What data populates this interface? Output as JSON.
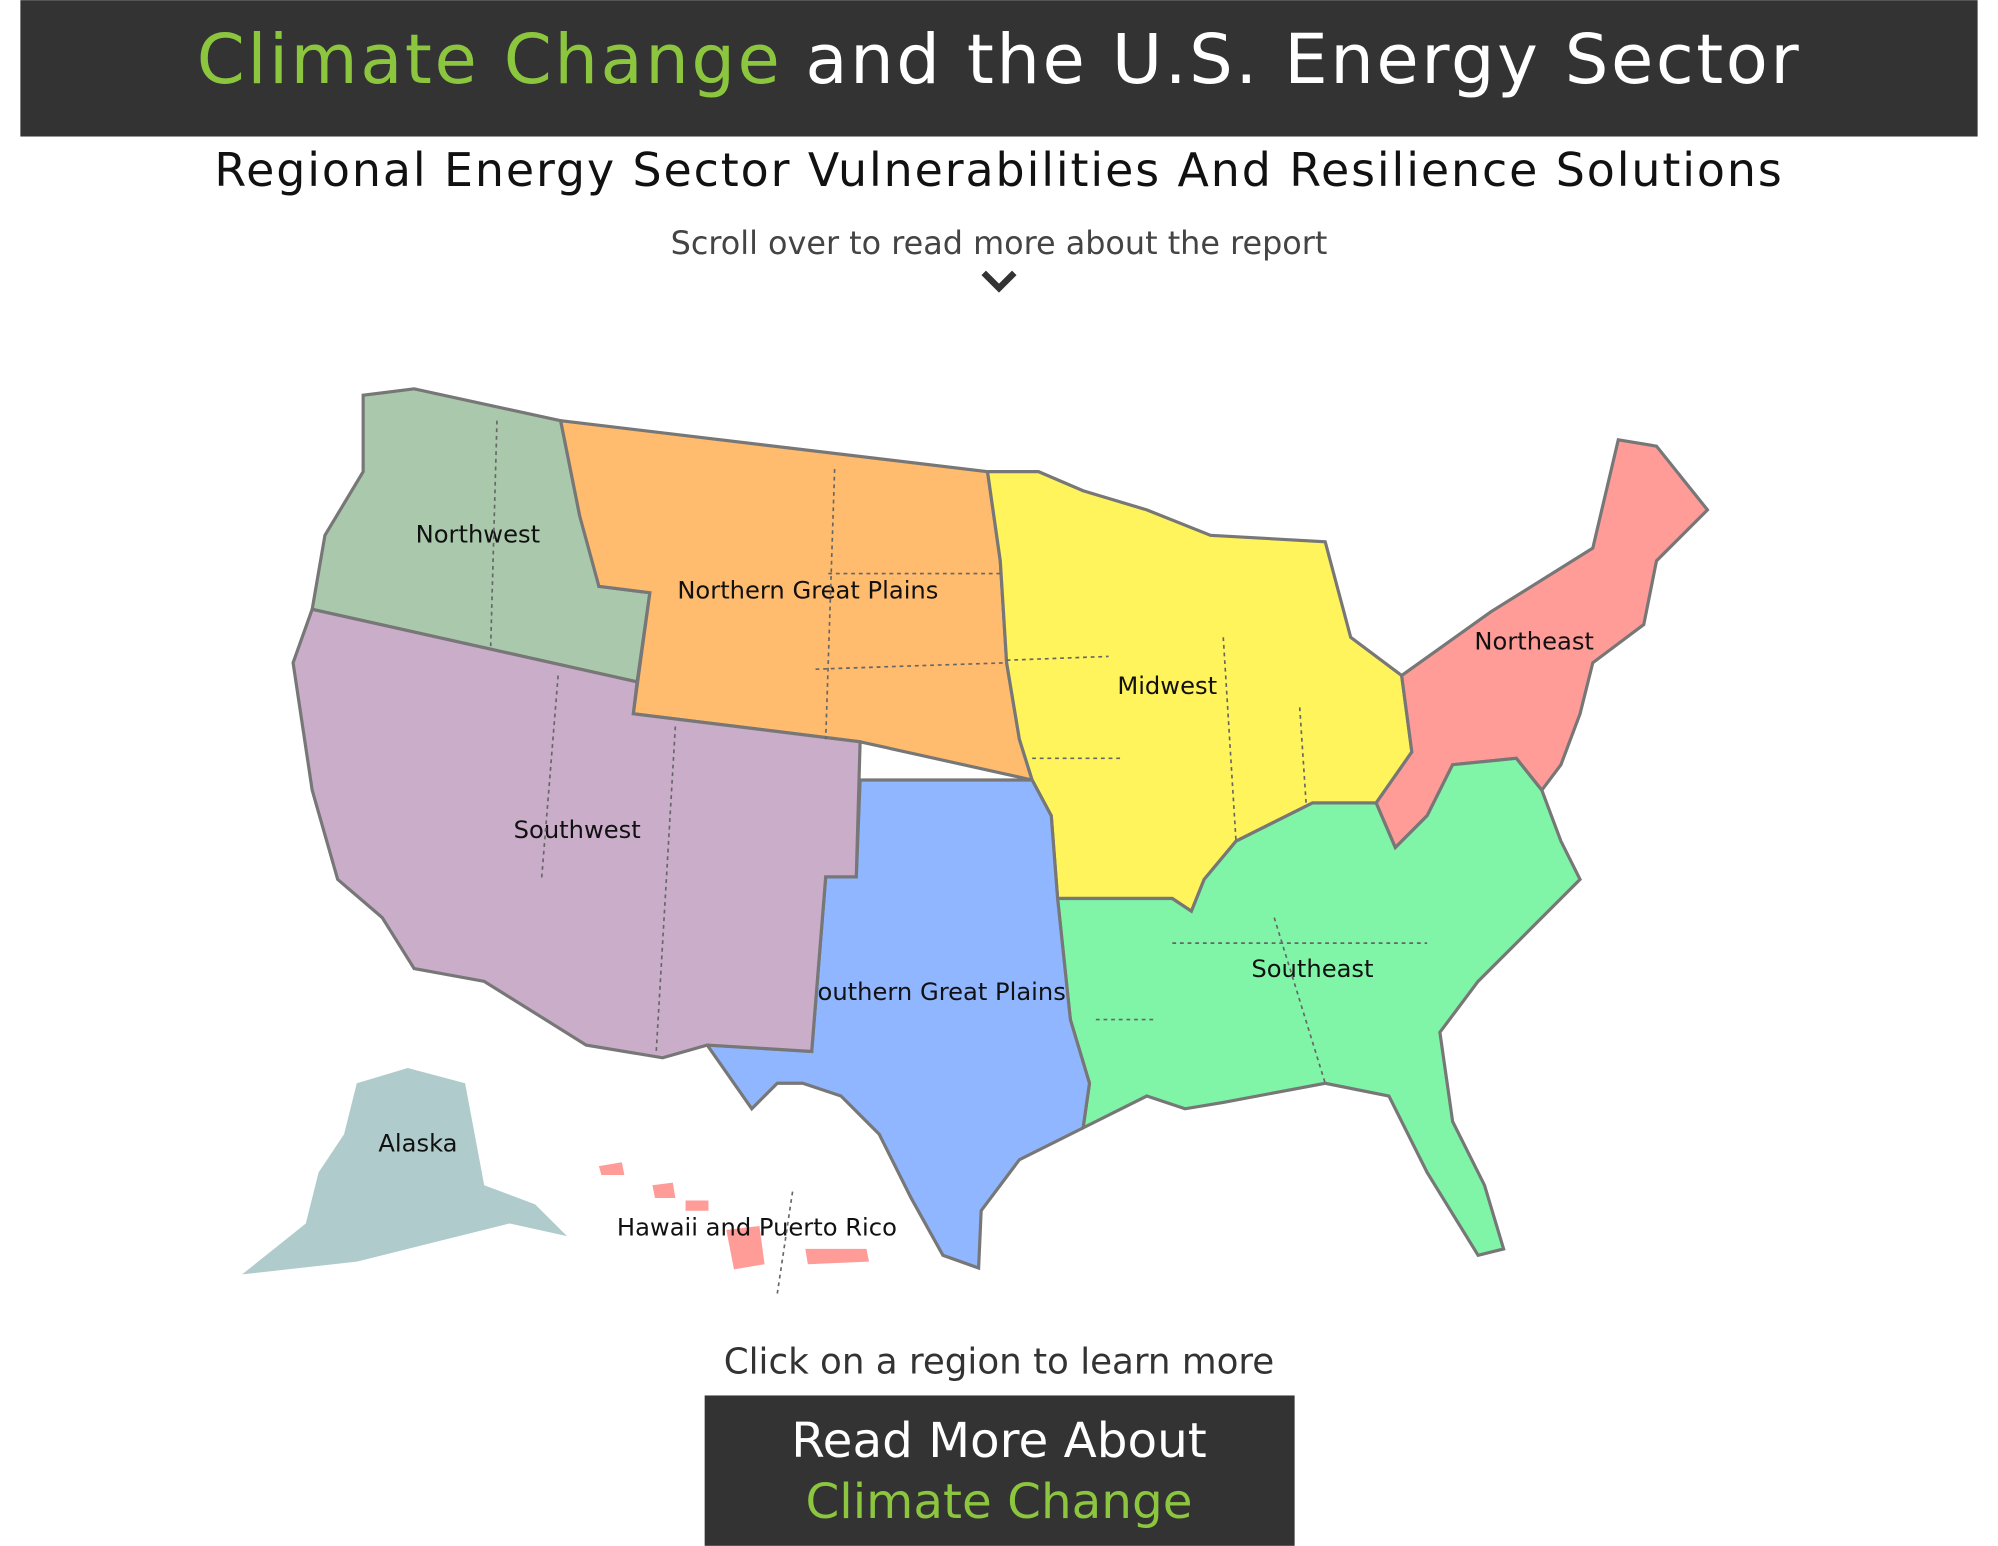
{
  "header": {
    "title_highlight": "Climate Change",
    "title_rest": "and the U.S. Energy Sector"
  },
  "subtitle": "Regional Energy Sector Vulnerabilities And Resilience Solutions",
  "scroll_hint": "Scroll over to read more about the report",
  "regions": [
    {
      "name": "Northwest",
      "color": "#aac8ac"
    },
    {
      "name": "Northern Great Plains",
      "color": "#ffbb6e"
    },
    {
      "name": "Midwest",
      "color": "#fff45c"
    },
    {
      "name": "Northeast",
      "color": "#ff9c98"
    },
    {
      "name": "Southeast",
      "color": "#80f5a8"
    },
    {
      "name": "Southern Great Plains",
      "color": "#90b6ff"
    },
    {
      "name": "Southwest",
      "color": "#c9adc9"
    },
    {
      "name": "Alaska",
      "color": "#b0cbcb"
    },
    {
      "name": "Hawaii and Puerto Rico",
      "color": "#ff9c98"
    }
  ],
  "click_hint": "Click on a region to learn more",
  "button": {
    "line1": "Read More About",
    "line2": "Climate Change"
  }
}
